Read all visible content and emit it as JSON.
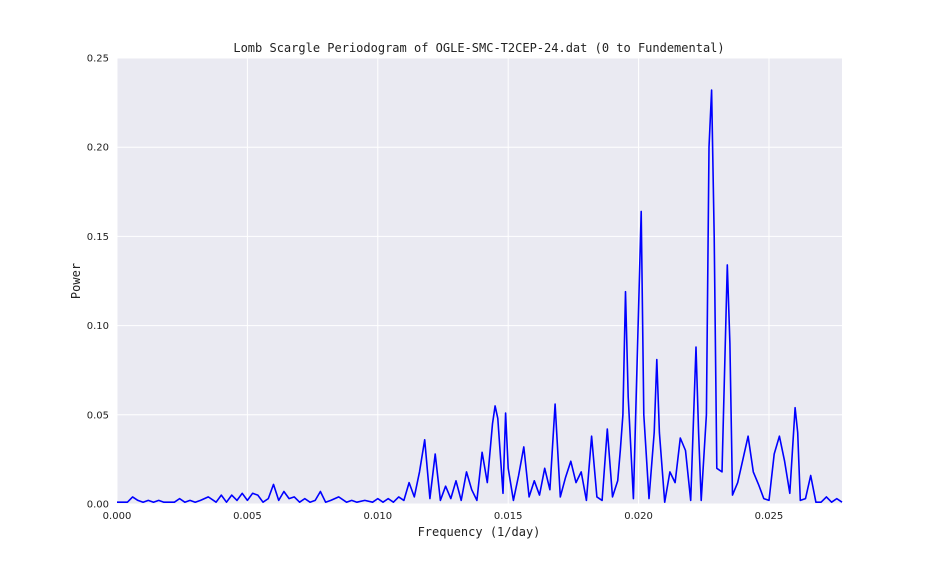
{
  "chart_data": {
    "type": "line",
    "title": "Lomb Scargle Periodogram of OGLE-SMC-T2CEP-24.dat (0 to Fundemental)",
    "xlabel": "Frequency (1/day)",
    "ylabel": "Power",
    "xlim": [
      0,
      0.0278
    ],
    "ylim": [
      0,
      0.25
    ],
    "xticks": [
      "0.000",
      "0.005",
      "0.010",
      "0.015",
      "0.020",
      "0.025"
    ],
    "yticks": [
      "0.00",
      "0.05",
      "0.10",
      "0.15",
      "0.20",
      "0.25"
    ],
    "grid": true,
    "background": "#EAEAF2",
    "series": [
      {
        "color": "#0000FF",
        "x": [
          0.0,
          0.0004,
          0.0006,
          0.0008,
          0.001,
          0.0012,
          0.0014,
          0.0016,
          0.0018,
          0.002,
          0.0022,
          0.0024,
          0.0026,
          0.0028,
          0.003,
          0.0032,
          0.0035,
          0.0038,
          0.004,
          0.0042,
          0.0044,
          0.0046,
          0.0048,
          0.005,
          0.0052,
          0.0054,
          0.0056,
          0.0058,
          0.006,
          0.0062,
          0.0064,
          0.0066,
          0.0068,
          0.007,
          0.0072,
          0.0074,
          0.0076,
          0.0078,
          0.008,
          0.0082,
          0.0085,
          0.0088,
          0.009,
          0.0092,
          0.0095,
          0.0098,
          0.01,
          0.0102,
          0.0104,
          0.0106,
          0.0108,
          0.011,
          0.0112,
          0.0114,
          0.0116,
          0.0118,
          0.012,
          0.0122,
          0.0124,
          0.0126,
          0.0128,
          0.013,
          0.0132,
          0.0134,
          0.0136,
          0.0138,
          0.014,
          0.0142,
          0.0144,
          0.0145,
          0.0146,
          0.0148,
          0.0149,
          0.015,
          0.0152,
          0.0154,
          0.0156,
          0.0158,
          0.016,
          0.0162,
          0.0164,
          0.0166,
          0.0168,
          0.017,
          0.0172,
          0.0174,
          0.0176,
          0.0178,
          0.018,
          0.0182,
          0.0184,
          0.0186,
          0.0188,
          0.019,
          0.0192,
          0.0193,
          0.0194,
          0.0195,
          0.0196,
          0.0198,
          0.02,
          0.0201,
          0.0202,
          0.0204,
          0.0206,
          0.0207,
          0.0208,
          0.021,
          0.0212,
          0.0214,
          0.0216,
          0.0218,
          0.022,
          0.0222,
          0.0223,
          0.0224,
          0.0226,
          0.0227,
          0.0228,
          0.0229,
          0.023,
          0.0232,
          0.0234,
          0.0235,
          0.0236,
          0.0238,
          0.024,
          0.0242,
          0.0244,
          0.0246,
          0.0248,
          0.025,
          0.0252,
          0.0254,
          0.0256,
          0.0258,
          0.026,
          0.0261,
          0.0262,
          0.0264,
          0.0266,
          0.0268,
          0.027,
          0.0272,
          0.0274,
          0.0276,
          0.0278
        ],
        "y": [
          0.001,
          0.001,
          0.004,
          0.002,
          0.001,
          0.002,
          0.001,
          0.002,
          0.001,
          0.001,
          0.001,
          0.003,
          0.001,
          0.002,
          0.001,
          0.002,
          0.004,
          0.001,
          0.005,
          0.001,
          0.005,
          0.002,
          0.006,
          0.002,
          0.006,
          0.005,
          0.001,
          0.003,
          0.011,
          0.002,
          0.007,
          0.003,
          0.004,
          0.001,
          0.003,
          0.001,
          0.002,
          0.007,
          0.001,
          0.002,
          0.004,
          0.001,
          0.002,
          0.001,
          0.002,
          0.001,
          0.003,
          0.001,
          0.003,
          0.001,
          0.004,
          0.002,
          0.012,
          0.004,
          0.018,
          0.036,
          0.003,
          0.028,
          0.002,
          0.01,
          0.003,
          0.013,
          0.002,
          0.018,
          0.008,
          0.002,
          0.029,
          0.012,
          0.045,
          0.055,
          0.048,
          0.006,
          0.051,
          0.02,
          0.002,
          0.016,
          0.032,
          0.004,
          0.013,
          0.005,
          0.02,
          0.008,
          0.056,
          0.004,
          0.015,
          0.024,
          0.012,
          0.018,
          0.002,
          0.038,
          0.004,
          0.002,
          0.042,
          0.004,
          0.013,
          0.03,
          0.05,
          0.119,
          0.06,
          0.003,
          0.11,
          0.164,
          0.05,
          0.003,
          0.04,
          0.081,
          0.04,
          0.001,
          0.018,
          0.012,
          0.037,
          0.03,
          0.002,
          0.088,
          0.04,
          0.002,
          0.05,
          0.2,
          0.232,
          0.15,
          0.02,
          0.018,
          0.134,
          0.09,
          0.005,
          0.012,
          0.025,
          0.038,
          0.018,
          0.011,
          0.003,
          0.002,
          0.028,
          0.038,
          0.024,
          0.006,
          0.054,
          0.04,
          0.002,
          0.003,
          0.016,
          0.001,
          0.001,
          0.004,
          0.001,
          0.003,
          0.001
        ]
      }
    ]
  }
}
